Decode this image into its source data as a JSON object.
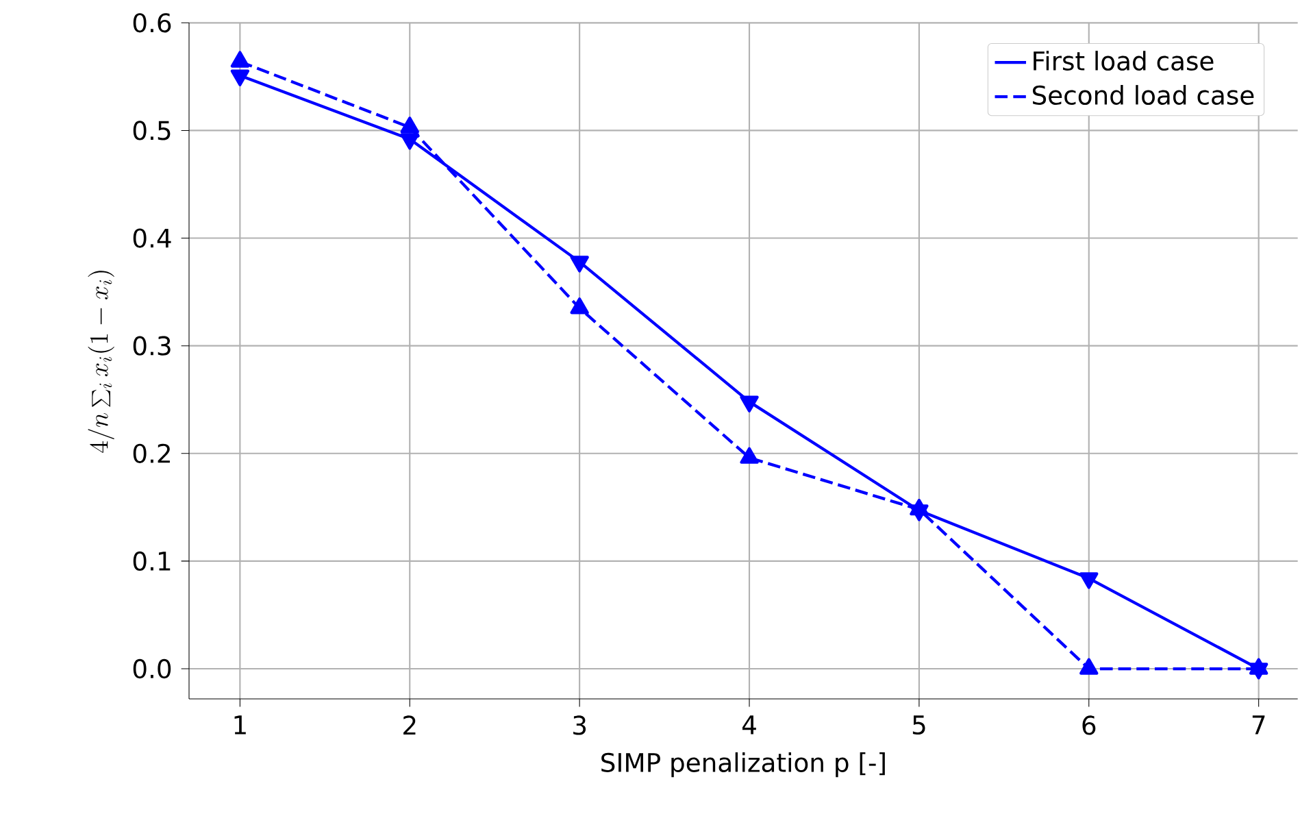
{
  "chart_data": {
    "type": "line",
    "xlabel": "SIMP penalization p [-]",
    "ylabel": "4/n\\sum_{i} x_i(1-x_i)",
    "x": [
      1,
      2,
      3,
      4,
      5,
      6,
      7
    ],
    "series": [
      {
        "name": "First load case",
        "color": "#0000ff",
        "values": [
          0.551,
          0.492,
          0.378,
          0.248,
          0.147,
          0.084,
          0.0
        ],
        "line_style": "solid",
        "marker": "triangle"
      },
      {
        "name": "Second load case",
        "color": "#0000ff",
        "values": [
          0.564,
          0.503,
          0.335,
          0.196,
          0.148,
          0.0,
          0.0
        ],
        "line_style": "dashed",
        "marker": "triangle"
      }
    ],
    "xlim": [
      0.7,
      7.23
    ],
    "ylim": [
      -0.028,
      0.6
    ],
    "xticks": [
      1,
      2,
      3,
      4,
      5,
      6,
      7
    ],
    "yticks": [
      {
        "value": 0,
        "label": "0.0"
      },
      {
        "value": 0.1,
        "label": "0.1"
      },
      {
        "value": 0.2,
        "label": "0.2"
      },
      {
        "value": 0.3,
        "label": "0.3"
      },
      {
        "value": 0.4,
        "label": "0.4"
      },
      {
        "value": 0.5,
        "label": "0.5"
      },
      {
        "value": 0.6,
        "label": "0.6"
      }
    ],
    "grid": true,
    "legend": "top right"
  }
}
